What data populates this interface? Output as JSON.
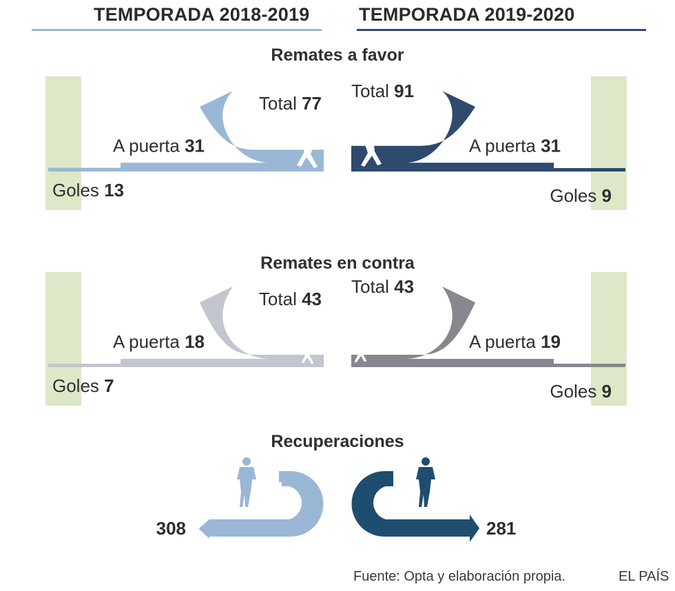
{
  "header": {
    "season_left": "TEMPORADA 2018-2019",
    "season_right": "TEMPORADA 2019-2020"
  },
  "colors": {
    "favor_2018": "#9bb7d6",
    "favor_2019": "#2e4a6e",
    "contra_2018": "#c3c6cc",
    "contra_2019": "#87888d",
    "recup_2018": "#9bb7d6",
    "recup_2019": "#1f4d70",
    "goal_zone": "#dde8c8",
    "rule_left": "#9bb7d6",
    "rule_right": "#2e4a6e"
  },
  "chart_data": [
    {
      "type": "bar",
      "title": "Remates a favor",
      "categories": [
        "Total",
        "A puerta",
        "Goles"
      ],
      "series": [
        {
          "name": "TEMPORADA 2018-2019",
          "values": [
            77,
            31,
            13
          ]
        },
        {
          "name": "TEMPORADA 2019-2020",
          "values": [
            91,
            31,
            9
          ]
        }
      ]
    },
    {
      "type": "bar",
      "title": "Remates en contra",
      "categories": [
        "Total",
        "A puerta",
        "Goles"
      ],
      "series": [
        {
          "name": "TEMPORADA 2018-2019",
          "values": [
            43,
            18,
            7
          ]
        },
        {
          "name": "TEMPORADA 2019-2020",
          "values": [
            43,
            19,
            9
          ]
        }
      ]
    },
    {
      "type": "bar",
      "title": "Recuperaciones",
      "categories": [
        "Recuperaciones"
      ],
      "series": [
        {
          "name": "TEMPORADA 2018-2019",
          "values": [
            308
          ]
        },
        {
          "name": "TEMPORADA 2019-2020",
          "values": [
            281
          ]
        }
      ]
    }
  ],
  "labels": {
    "total": "Total",
    "a_puerta": "A puerta",
    "goles": "Goles"
  },
  "footer": {
    "source": "Fuente: Opta y elaboración propia.",
    "brand": "EL PAÍS"
  }
}
